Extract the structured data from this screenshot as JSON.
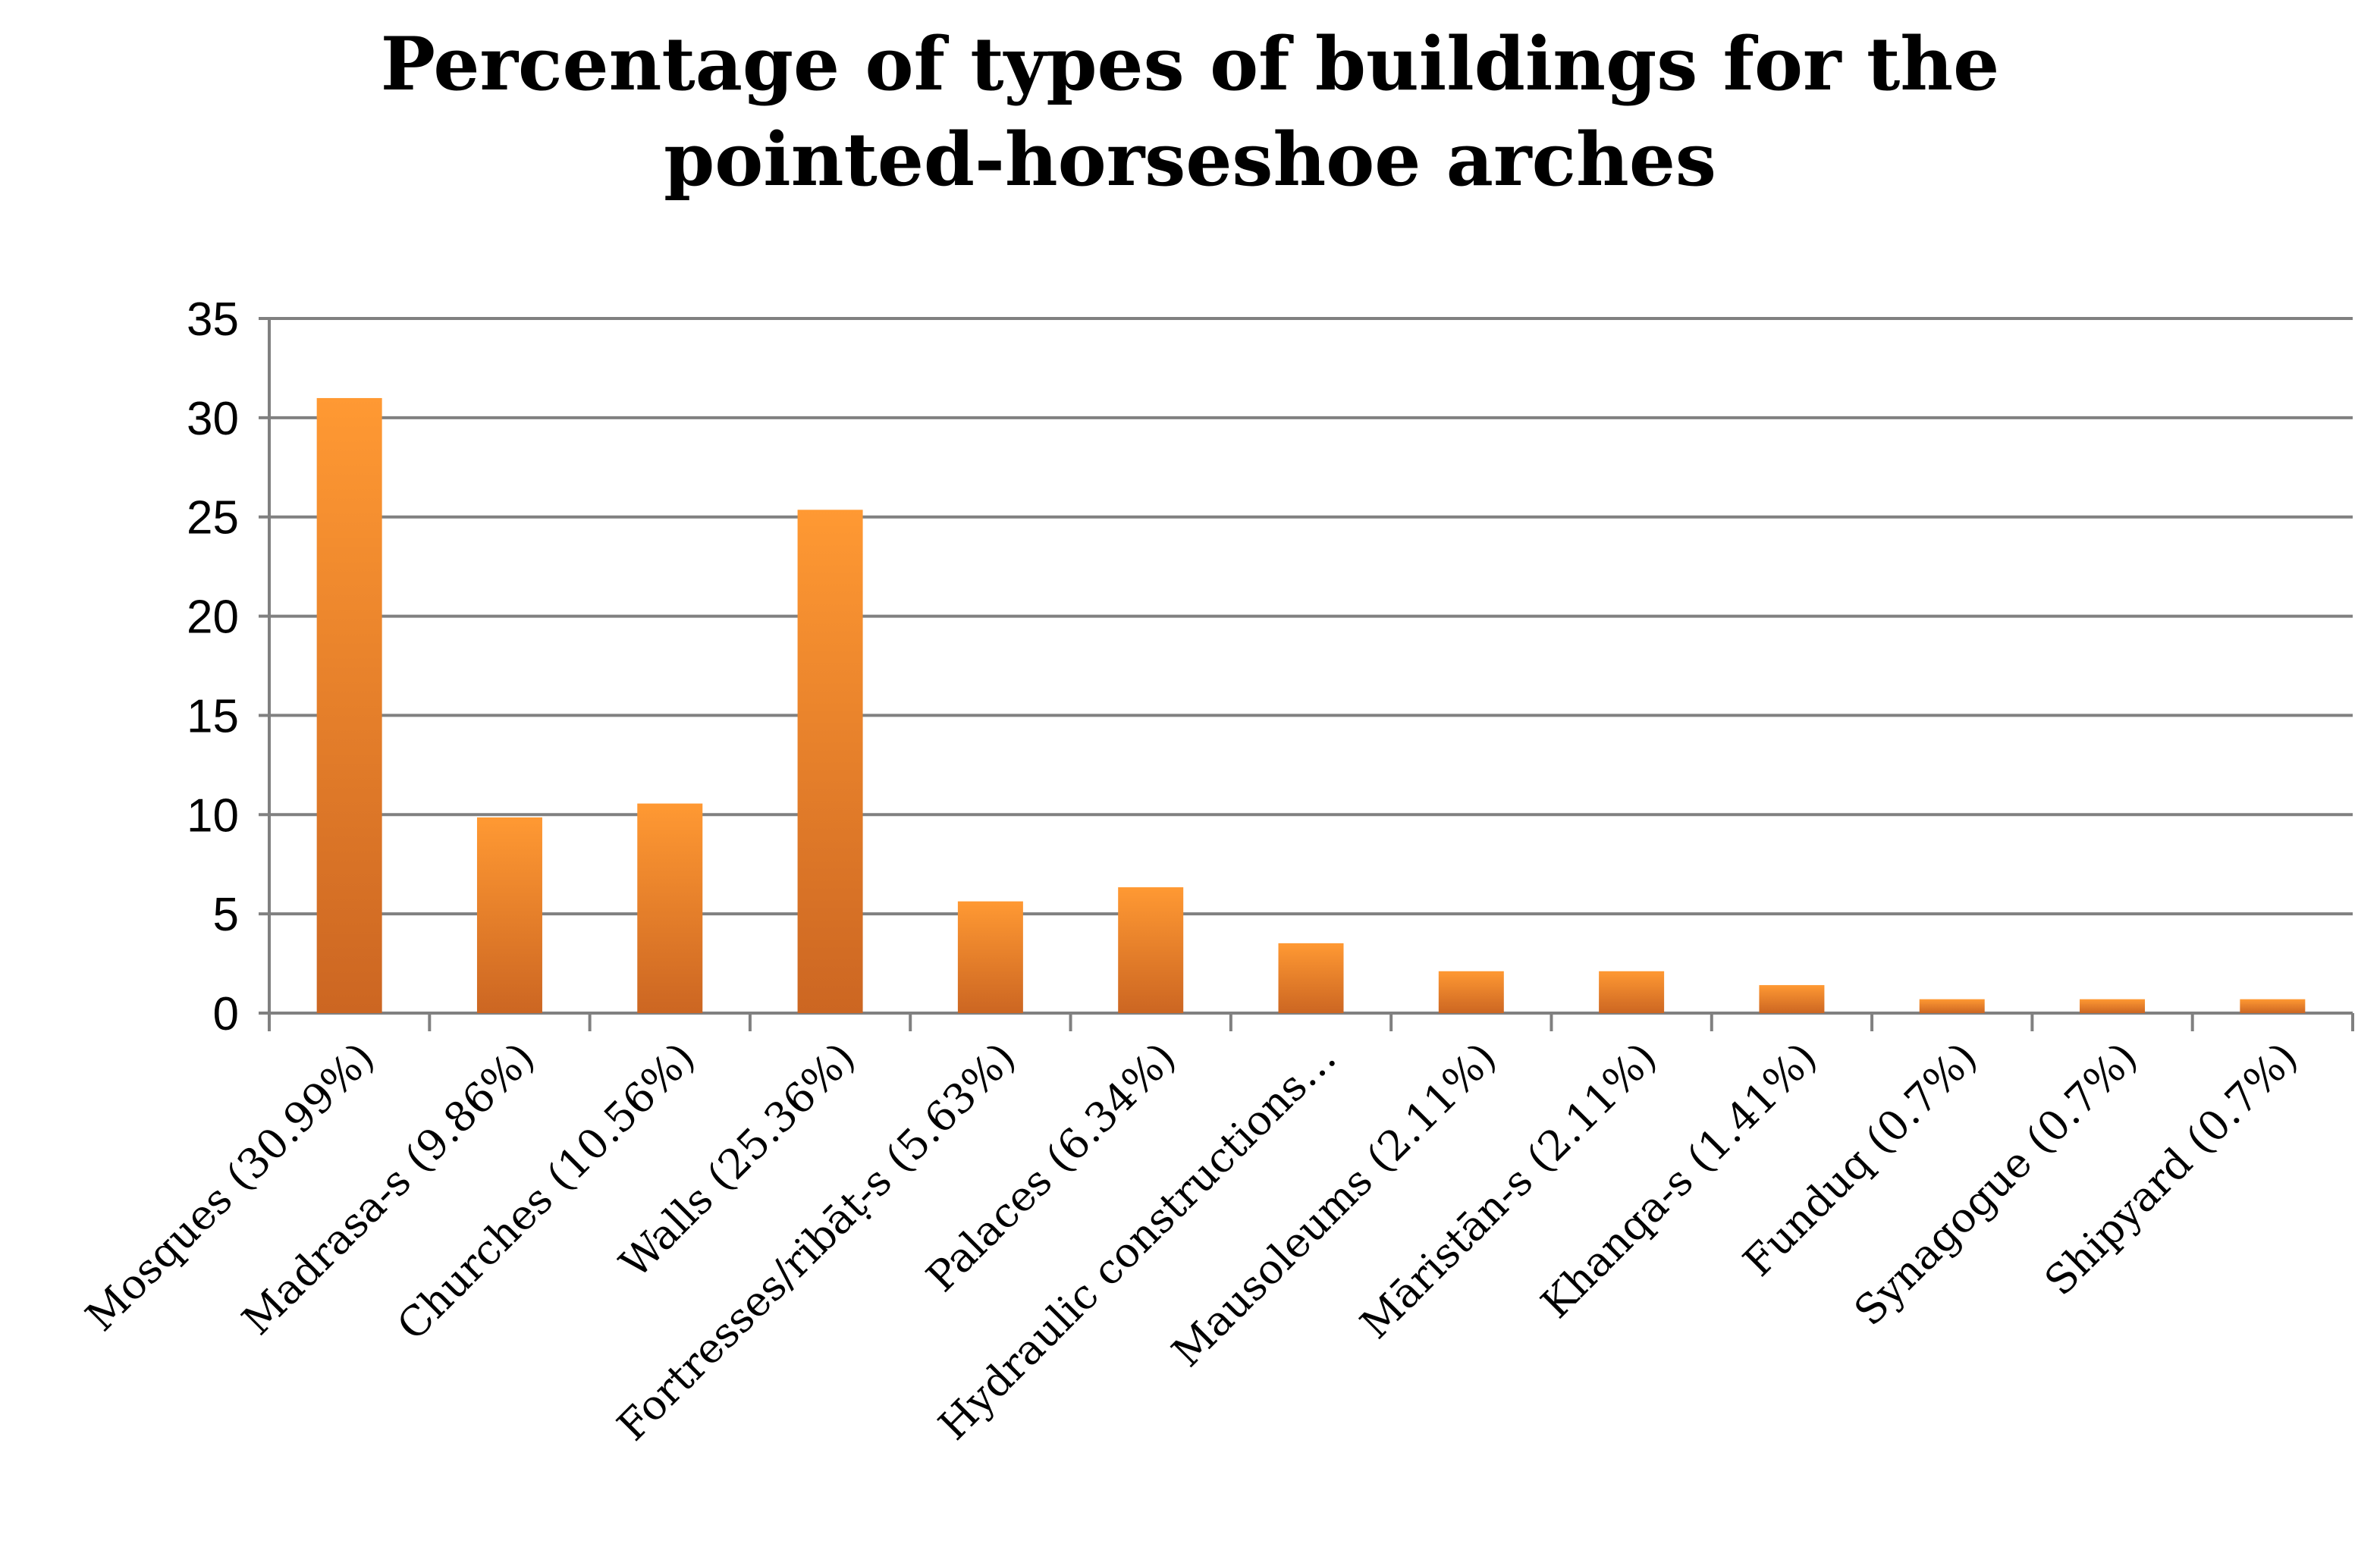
{
  "chart_data": {
    "type": "bar",
    "title": [
      "Percentage of types of buildings for the",
      "pointed-horseshoe arches"
    ],
    "xlabel": "",
    "ylabel": "",
    "ylim": [
      0,
      35
    ],
    "yticks": [
      "0",
      "5",
      "10",
      "15",
      "20",
      "25",
      "30",
      "35"
    ],
    "grid": true,
    "legend": "none",
    "categories": [
      "Mosques (30.99%)",
      "Madrasa-s (9.86%)",
      "Churches (10.56%)",
      "Walls (25.36%)",
      "Fortresses/ribāṭ-s (5.63%)",
      "Palaces (6.34%)",
      "Hydraulic constructions…",
      "Mausoleums (2.11%)",
      "Māristān-s (2.11%)",
      "Khanqa-s (1.41%)",
      "Funduq (0.7%)",
      "Synagogue (0.7%)",
      "Shipyard (0.7%)"
    ],
    "values": [
      30.99,
      9.86,
      10.56,
      25.36,
      5.63,
      6.34,
      3.52,
      2.11,
      2.11,
      1.41,
      0.7,
      0.7,
      0.7
    ],
    "colors": {
      "bar_top": "#FF9933",
      "bar_bottom": "#CC6622",
      "grid": "#808080",
      "axis": "#808080"
    }
  }
}
